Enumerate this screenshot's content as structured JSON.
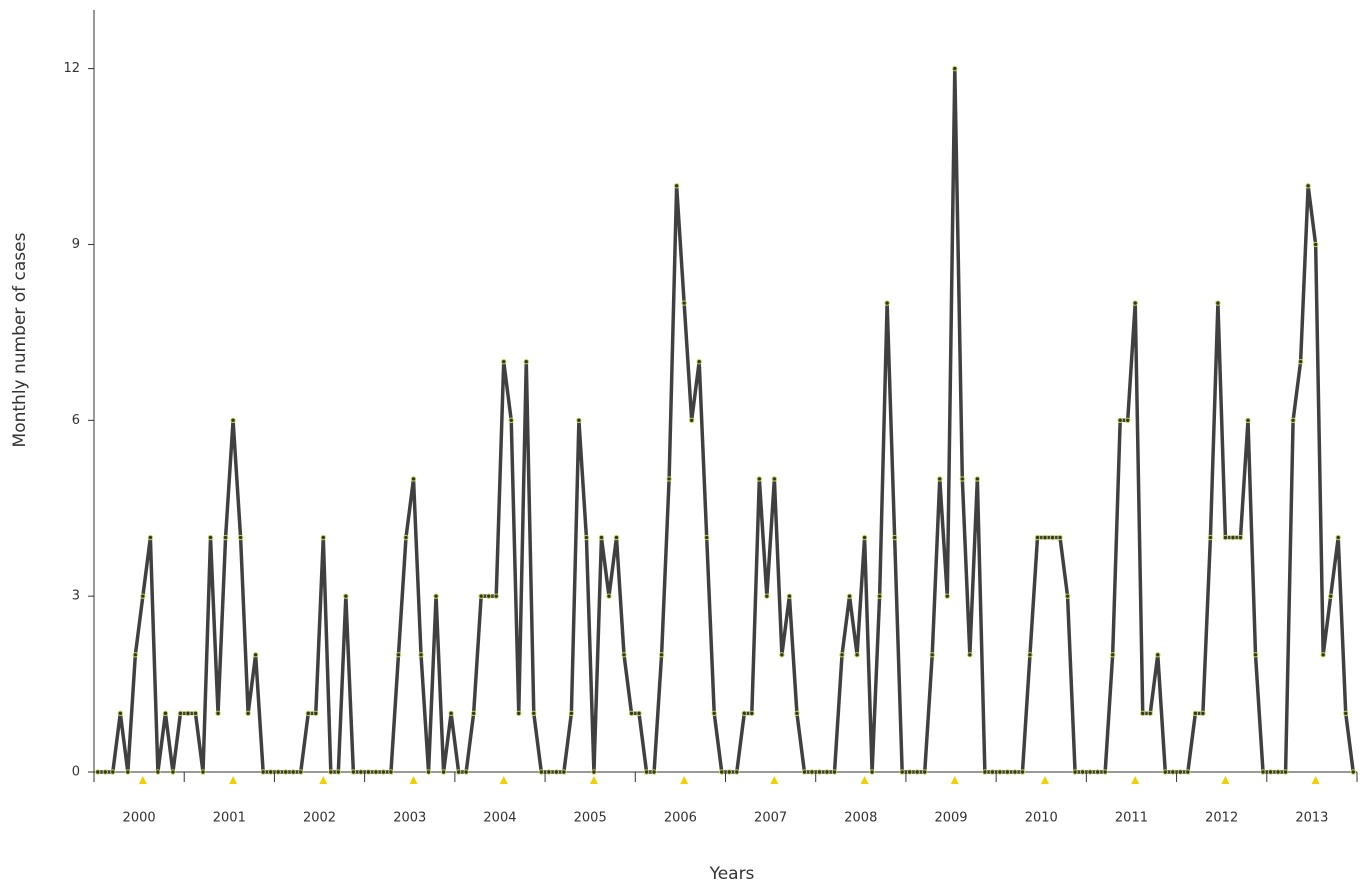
{
  "chart_data": {
    "type": "line",
    "xlabel": "Years",
    "ylabel": "Monthly number of cases",
    "categories": [
      null,
      null,
      null,
      null,
      null,
      "2000",
      null,
      null,
      null,
      null,
      null,
      null,
      null,
      null,
      null,
      null,
      null,
      "2001",
      null,
      null,
      null,
      null,
      null,
      null,
      null,
      null,
      null,
      null,
      null,
      "2002",
      null,
      null,
      null,
      null,
      null,
      null,
      null,
      null,
      null,
      null,
      null,
      "2003",
      null,
      null,
      null,
      null,
      null,
      null,
      null,
      null,
      null,
      null,
      null,
      "2004",
      null,
      null,
      null,
      null,
      null,
      null,
      null,
      null,
      null,
      null,
      null,
      "2005",
      null,
      null,
      null,
      null,
      null,
      null,
      null,
      null,
      null,
      null,
      null,
      "2006",
      null,
      null,
      null,
      null,
      null,
      null,
      null,
      null,
      null,
      null,
      null,
      "2007",
      null,
      null,
      null,
      null,
      null,
      null,
      null,
      null,
      null,
      null,
      null,
      "2008",
      null,
      null,
      null,
      null,
      null,
      null,
      null,
      null,
      null,
      null,
      null,
      "2009",
      null,
      null,
      null,
      null,
      null,
      null,
      null,
      null,
      null,
      null,
      null,
      "2010",
      null,
      null,
      null,
      null,
      null,
      null,
      null,
      null,
      null,
      null,
      null,
      "2011",
      null,
      null,
      null,
      null,
      null,
      null,
      null,
      null,
      null,
      null,
      null,
      "2012",
      null,
      null,
      null,
      null,
      null,
      null,
      null,
      null,
      null,
      null,
      null,
      "2013",
      null,
      null,
      null,
      null,
      null,
      null
    ],
    "values": [
      0,
      0,
      0,
      1,
      0,
      2,
      3,
      4,
      0,
      1,
      0,
      1,
      1,
      1,
      0,
      4,
      1,
      4,
      6,
      4,
      1,
      2,
      0,
      0,
      0,
      0,
      0,
      0,
      1,
      1,
      4,
      0,
      0,
      3,
      0,
      0,
      0,
      0,
      0,
      0,
      2,
      4,
      5,
      2,
      0,
      3,
      0,
      1,
      0,
      0,
      1,
      3,
      3,
      3,
      7,
      6,
      1,
      7,
      1,
      0,
      0,
      0,
      0,
      1,
      6,
      4,
      0,
      4,
      3,
      4,
      2,
      1,
      1,
      0,
      0,
      2,
      5,
      10,
      8,
      6,
      7,
      4,
      1,
      0,
      0,
      0,
      1,
      1,
      5,
      3,
      5,
      2,
      3,
      1,
      0,
      0,
      0,
      0,
      0,
      2,
      3,
      2,
      4,
      0,
      3,
      8,
      4,
      0,
      0,
      0,
      0,
      2,
      5,
      3,
      12,
      5,
      2,
      5,
      0,
      0,
      0,
      0,
      0,
      0,
      2,
      4,
      4,
      4,
      4,
      3,
      0,
      0,
      0,
      0,
      0,
      2,
      6,
      6,
      8,
      1,
      1,
      2,
      0,
      0,
      0,
      0,
      1,
      1,
      4,
      8,
      4,
      4,
      4,
      6,
      2,
      0,
      0,
      0,
      0,
      6,
      7,
      10,
      9,
      2,
      3,
      4,
      1,
      0
    ],
    "color": "#404040",
    "marker_color": "#c5d64a",
    "ylim": [
      0,
      13
    ],
    "yticks": [
      0,
      3,
      6,
      9,
      12
    ],
    "grid": false
  }
}
